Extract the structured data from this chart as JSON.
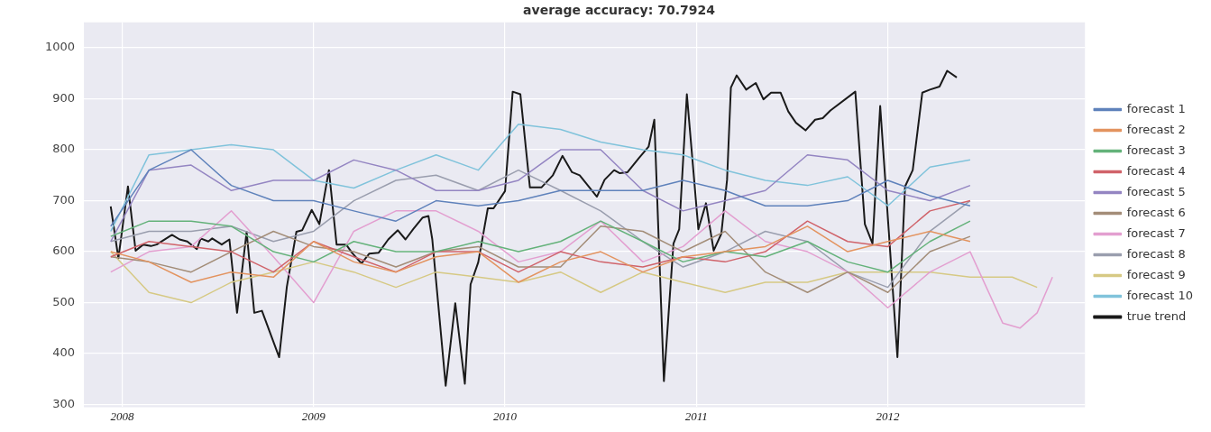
{
  "chart_data": {
    "type": "line",
    "title": "average accuracy: 70.7924",
    "x": [
      2007.94,
      2008.14,
      2008.36,
      2008.57,
      2008.79,
      2009.0,
      2009.21,
      2009.43,
      2009.64,
      2009.86,
      2010.07,
      2010.29,
      2010.5,
      2010.72,
      2010.93,
      2011.15,
      2011.36,
      2011.58,
      2011.79,
      2012.0,
      2012.22,
      2012.43
    ],
    "xlim": [
      2007.8,
      2013.03
    ],
    "xticks": [
      2008,
      2009,
      2010,
      2011,
      2012
    ],
    "ylim": [
      295,
      1050
    ],
    "yticks": [
      300,
      400,
      500,
      600,
      700,
      800,
      900,
      1000
    ],
    "grid": true,
    "legend": "right",
    "marker": "none",
    "series": [
      {
        "name": "forecast 1",
        "color": "#5f82bb",
        "values": [
          650,
          760,
          800,
          730,
          700,
          700,
          680,
          660,
          700,
          690,
          700,
          720,
          720,
          720,
          740,
          720,
          690,
          690,
          700,
          740,
          710,
          690
        ]
      },
      {
        "name": "forecast 2",
        "color": "#e3935f",
        "values": [
          600,
          580,
          540,
          560,
          550,
          620,
          580,
          560,
          590,
          600,
          540,
          580,
          600,
          560,
          590,
          600,
          610,
          650,
          600,
          620,
          640,
          620
        ]
      },
      {
        "name": "forecast 3",
        "color": "#64b27a",
        "values": [
          630,
          660,
          660,
          650,
          600,
          580,
          620,
          600,
          600,
          620,
          600,
          620,
          660,
          620,
          580,
          600,
          590,
          620,
          580,
          560,
          620,
          660
        ]
      },
      {
        "name": "forecast 4",
        "color": "#d0636a",
        "values": [
          590,
          620,
          610,
          600,
          560,
          620,
          590,
          560,
          600,
          600,
          560,
          600,
          580,
          570,
          590,
          580,
          600,
          660,
          620,
          610,
          680,
          700
        ]
      },
      {
        "name": "forecast 5",
        "color": "#9485c2",
        "values": [
          620,
          760,
          770,
          720,
          740,
          740,
          780,
          760,
          720,
          720,
          740,
          800,
          800,
          720,
          680,
          700,
          720,
          790,
          780,
          720,
          700,
          730
        ]
      },
      {
        "name": "forecast 6",
        "color": "#a38d78",
        "values": [
          590,
          580,
          560,
          600,
          640,
          610,
          600,
          570,
          600,
          610,
          570,
          570,
          650,
          640,
          600,
          640,
          560,
          520,
          560,
          520,
          600,
          630
        ]
      },
      {
        "name": "forecast 7",
        "color": "#e39fd0",
        "x": [
          2007.94,
          2008.14,
          2008.36,
          2008.57,
          2008.79,
          2009.0,
          2009.21,
          2009.43,
          2009.64,
          2009.86,
          2010.07,
          2010.29,
          2010.5,
          2010.72,
          2010.93,
          2011.15,
          2011.36,
          2011.58,
          2011.79,
          2012.0,
          2012.22,
          2012.43,
          2012.6,
          2012.69,
          2012.78,
          2012.86
        ],
        "values": [
          560,
          600,
          610,
          680,
          590,
          500,
          640,
          680,
          680,
          640,
          580,
          600,
          660,
          580,
          610,
          680,
          620,
          600,
          560,
          490,
          560,
          600,
          460,
          450,
          480,
          550
        ]
      },
      {
        "name": "forecast 8",
        "color": "#9a9eae",
        "values": [
          620,
          640,
          640,
          650,
          620,
          640,
          700,
          740,
          750,
          720,
          760,
          720,
          680,
          620,
          570,
          600,
          640,
          620,
          560,
          530,
          640,
          700
        ]
      },
      {
        "name": "forecast 9",
        "color": "#d6c984",
        "x": [
          2007.94,
          2008.14,
          2008.36,
          2008.57,
          2008.79,
          2009.0,
          2009.21,
          2009.43,
          2009.64,
          2009.86,
          2010.07,
          2010.29,
          2010.5,
          2010.72,
          2010.93,
          2011.15,
          2011.36,
          2011.58,
          2011.79,
          2012.0,
          2012.22,
          2012.43,
          2012.65,
          2012.78
        ],
        "values": [
          600,
          520,
          500,
          540,
          560,
          580,
          560,
          530,
          560,
          550,
          540,
          560,
          520,
          560,
          540,
          520,
          540,
          540,
          560,
          560,
          560,
          550,
          550,
          530
        ]
      },
      {
        "name": "forecast 10",
        "color": "#80c3db",
        "values": [
          640,
          790,
          800,
          810,
          800,
          740,
          725,
          760,
          790,
          760,
          850,
          840,
          815,
          800,
          790,
          760,
          740,
          730,
          747,
          690,
          766,
          780
        ]
      },
      {
        "name": "true trend",
        "color": "#1a1a1a",
        "x": [
          2007.94,
          2007.98,
          2008.03,
          2008.07,
          2008.11,
          2008.15,
          2008.18,
          2008.26,
          2008.3,
          2008.34,
          2008.39,
          2008.41,
          2008.45,
          2008.47,
          2008.52,
          2008.56,
          2008.6,
          2008.65,
          2008.69,
          2008.73,
          2008.82,
          2008.86,
          2008.91,
          2008.94,
          2008.99,
          2009.03,
          2009.08,
          2009.12,
          2009.17,
          2009.2,
          2009.25,
          2009.29,
          2009.34,
          2009.39,
          2009.44,
          2009.48,
          2009.52,
          2009.57,
          2009.6,
          2009.62,
          2009.69,
          2009.74,
          2009.79,
          2009.82,
          2009.86,
          2009.91,
          2009.94,
          2010.0,
          2010.04,
          2010.08,
          2010.13,
          2010.19,
          2010.25,
          2010.3,
          2010.35,
          2010.39,
          2010.48,
          2010.52,
          2010.57,
          2010.6,
          2010.64,
          2010.7,
          2010.75,
          2010.78,
          2010.83,
          2010.88,
          2010.91,
          2010.95,
          2011.01,
          2011.05,
          2011.09,
          2011.13,
          2011.16,
          2011.18,
          2011.21,
          2011.26,
          2011.31,
          2011.35,
          2011.39,
          2011.44,
          2011.48,
          2011.52,
          2011.57,
          2011.62,
          2011.66,
          2011.7,
          2011.83,
          2011.88,
          2011.92,
          2011.96,
          2012.05,
          2012.09,
          2012.13,
          2012.18,
          2012.22,
          2012.27,
          2012.31,
          2012.36
        ],
        "values": [
          689,
          587,
          728,
          602,
          614,
          611,
          614,
          633,
          624,
          620,
          605,
          626,
          620,
          626,
          614,
          624,
          480,
          639,
          480,
          484,
          393,
          531,
          639,
          642,
          682,
          654,
          760,
          614,
          614,
          598,
          577,
          596,
          598,
          624,
          642,
          624,
          644,
          667,
          670,
          624,
          337,
          499,
          341,
          536,
          579,
          685,
          685,
          719,
          914,
          909,
          726,
          726,
          750,
          788,
          756,
          750,
          708,
          741,
          760,
          754,
          756,
          784,
          806,
          859,
          346,
          616,
          644,
          909,
          644,
          695,
          602,
          635,
          741,
          922,
          946,
          918,
          931,
          899,
          912,
          912,
          875,
          853,
          838,
          859,
          862,
          877,
          914,
          654,
          616,
          886,
          393,
          728,
          760,
          912,
          918,
          924,
          955,
          942
        ]
      }
    ]
  }
}
